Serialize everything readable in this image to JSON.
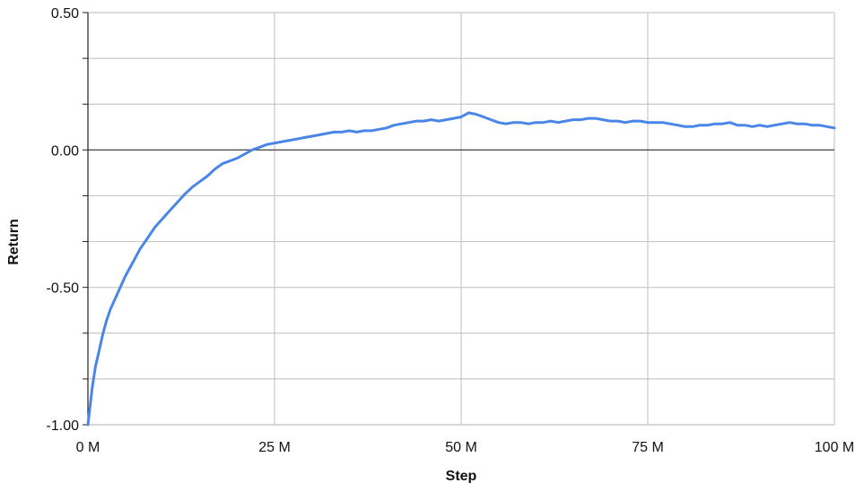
{
  "chart_data": {
    "type": "line",
    "title": "",
    "xlabel": "Step",
    "ylabel": "Return",
    "xlim": [
      0,
      100
    ],
    "ylim": [
      -1.0,
      0.5
    ],
    "x_unit": "M",
    "x_ticks": [
      0,
      25,
      50,
      75,
      100
    ],
    "x_tick_labels": [
      "0 M",
      "25 M",
      "50 M",
      "75 M",
      "100 M"
    ],
    "y_ticks": [
      -1.0,
      -0.5,
      0.0,
      0.5
    ],
    "y_tick_labels": [
      "-1.00",
      "-0.50",
      "0.00",
      "0.50"
    ],
    "y_minor_step": 0.166667,
    "x_minor_step": 25,
    "grid": true,
    "legend": "none",
    "colors": {
      "line": "#4a86e8",
      "grid": "#c8c8c8",
      "zero_line": "#333333",
      "axis": "#222222"
    },
    "series": [
      {
        "x": [
          0,
          0.3,
          0.6,
          1,
          1.5,
          2,
          2.5,
          3,
          4,
          5,
          6,
          7,
          8,
          9,
          10,
          11,
          12,
          13,
          14,
          15,
          16,
          17,
          18,
          19,
          20,
          21,
          22,
          23,
          24,
          25,
          26,
          27,
          28,
          29,
          30,
          31,
          32,
          33,
          34,
          35,
          36,
          37,
          38,
          39,
          40,
          41,
          42,
          43,
          44,
          45,
          46,
          47,
          48,
          49,
          50,
          51,
          52,
          53,
          54,
          55,
          56,
          57,
          58,
          59,
          60,
          61,
          62,
          63,
          64,
          65,
          66,
          67,
          68,
          69,
          70,
          71,
          72,
          73,
          74,
          75,
          76,
          77,
          78,
          79,
          80,
          81,
          82,
          83,
          84,
          85,
          86,
          87,
          88,
          89,
          90,
          91,
          92,
          93,
          94,
          95,
          96,
          97,
          98,
          99,
          100
        ],
        "y": [
          -1.0,
          -0.93,
          -0.86,
          -0.79,
          -0.73,
          -0.67,
          -0.62,
          -0.58,
          -0.52,
          -0.46,
          -0.41,
          -0.36,
          -0.32,
          -0.28,
          -0.25,
          -0.22,
          -0.19,
          -0.16,
          -0.135,
          -0.115,
          -0.095,
          -0.07,
          -0.05,
          -0.04,
          -0.03,
          -0.015,
          0.0,
          0.01,
          0.02,
          0.025,
          0.03,
          0.035,
          0.04,
          0.045,
          0.05,
          0.055,
          0.06,
          0.065,
          0.065,
          0.07,
          0.065,
          0.07,
          0.07,
          0.075,
          0.08,
          0.09,
          0.095,
          0.1,
          0.105,
          0.105,
          0.11,
          0.105,
          0.11,
          0.115,
          0.12,
          0.135,
          0.13,
          0.12,
          0.11,
          0.1,
          0.095,
          0.1,
          0.1,
          0.095,
          0.1,
          0.1,
          0.105,
          0.1,
          0.105,
          0.11,
          0.11,
          0.115,
          0.115,
          0.11,
          0.105,
          0.105,
          0.1,
          0.105,
          0.105,
          0.1,
          0.1,
          0.1,
          0.095,
          0.09,
          0.085,
          0.085,
          0.09,
          0.09,
          0.095,
          0.095,
          0.1,
          0.09,
          0.09,
          0.085,
          0.09,
          0.085,
          0.09,
          0.095,
          0.1,
          0.095,
          0.095,
          0.09,
          0.09,
          0.085,
          0.08
        ]
      }
    ]
  }
}
